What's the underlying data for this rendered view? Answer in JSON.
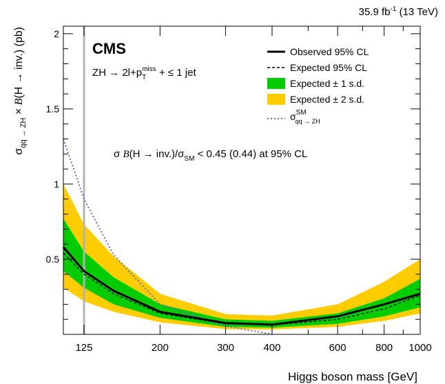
{
  "chart_data": {
    "type": "line",
    "lumi_label": "35.9 fb⁻¹ (13 TeV)",
    "experiment": "CMS",
    "channel": "ZH → 2l+pTmiss + ≤ 1 jet",
    "result_text": "σ B(H → inv.)/σSM < 0.45 (0.44) at 95% CL",
    "xlabel": "Higgs boson mass [GeV]",
    "ylabel": "σqq→ZH × B(H → inv.) (pb)",
    "x_scale": "log",
    "xlim": [
      110,
      1000
    ],
    "ylim": [
      0,
      2.05
    ],
    "x_ticks": [
      125,
      200,
      300,
      400,
      600,
      800,
      1000
    ],
    "y_ticks": [
      0.5,
      1,
      1.5,
      2
    ],
    "reference_line_x": 125,
    "legend_position": "top-right",
    "legend": [
      {
        "label": "Observed 95% CL",
        "style": "solid-black"
      },
      {
        "label": "Expected 95% CL",
        "style": "dashed-black"
      },
      {
        "label": "Expected ± 1 s.d.",
        "style": "green-band"
      },
      {
        "label": "Expected ± 2 s.d.",
        "style": "yellow-band"
      },
      {
        "label": "σSM qq→ZH",
        "style": "dotted-blue"
      }
    ],
    "x": [
      110,
      125,
      150,
      200,
      300,
      400,
      600,
      800,
      1000
    ],
    "series": [
      {
        "name": "Observed 95% CL",
        "values": [
          0.58,
          0.42,
          0.29,
          0.15,
          0.075,
          0.065,
          0.12,
          0.2,
          0.27
        ]
      },
      {
        "name": "Expected 95% CL",
        "values": [
          0.54,
          0.4,
          0.27,
          0.14,
          0.07,
          0.062,
          0.1,
          0.17,
          0.26
        ]
      },
      {
        "name": "Expected ± 1 s.d.",
        "lower": [
          0.42,
          0.31,
          0.2,
          0.11,
          0.05,
          0.045,
          0.07,
          0.12,
          0.18
        ],
        "upper": [
          0.77,
          0.55,
          0.38,
          0.2,
          0.1,
          0.09,
          0.14,
          0.24,
          0.37
        ]
      },
      {
        "name": "Expected ± 2 s.d.",
        "lower": [
          0.31,
          0.22,
          0.15,
          0.08,
          0.035,
          0.033,
          0.05,
          0.09,
          0.14
        ],
        "upper": [
          1.0,
          0.73,
          0.52,
          0.27,
          0.135,
          0.125,
          0.2,
          0.35,
          0.5
        ]
      },
      {
        "name": "σSM qq→ZH",
        "x": [
          110,
          125,
          150,
          200,
          300,
          400
        ],
        "values": [
          1.3,
          0.9,
          0.53,
          0.2,
          0.055,
          0.0
        ]
      }
    ],
    "colors": {
      "observed": "#000000",
      "expected": "#000000",
      "band1": "#00cc00",
      "band2": "#ffcc00",
      "sm": "#6666cc",
      "reference_line": "#b3b3b3"
    }
  }
}
